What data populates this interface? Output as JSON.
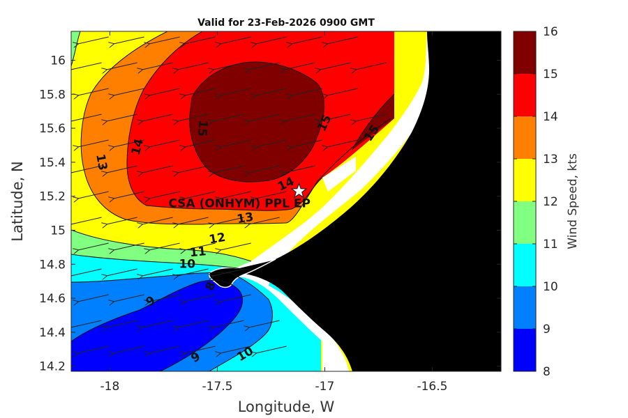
{
  "title": "Valid for 23-Feb-2026 0900 GMT",
  "axes": {
    "xlabel": "Longitude, W",
    "ylabel": "Latitude, N",
    "xlim": [
      -18.18,
      -16.18
    ],
    "ylim": [
      14.17,
      16.17
    ],
    "xticks": [
      {
        "value": -18,
        "label": "-18"
      },
      {
        "value": -17.5,
        "label": "-17.5"
      },
      {
        "value": -17,
        "label": "-17"
      },
      {
        "value": -16.5,
        "label": "-16.5"
      }
    ],
    "yticks": [
      {
        "value": 14.2,
        "label": "14.2"
      },
      {
        "value": 14.4,
        "label": "14.4"
      },
      {
        "value": 14.6,
        "label": "14.6"
      },
      {
        "value": 14.8,
        "label": "14.8"
      },
      {
        "value": 15,
        "label": "15"
      },
      {
        "value": 15.2,
        "label": "15.2"
      },
      {
        "value": 15.4,
        "label": "15.4"
      },
      {
        "value": 15.6,
        "label": "15.6"
      },
      {
        "value": 15.8,
        "label": "15.8"
      },
      {
        "value": 16,
        "label": "16"
      }
    ]
  },
  "colorbar": {
    "label": "Wind Speed, kts",
    "ticks": [
      "8",
      "9",
      "10",
      "11",
      "12",
      "13",
      "14",
      "15",
      "16"
    ],
    "colors": [
      "#0000ff",
      "#0080ff",
      "#00ffff",
      "#80ff80",
      "#ffff00",
      "#ff8000",
      "#ff0000",
      "#800000"
    ],
    "range": [
      8,
      16
    ]
  },
  "contour_labels": [
    {
      "text": "13",
      "lon": -18.04,
      "lat": 15.4,
      "angle": 80
    },
    {
      "text": "14",
      "lon": -17.87,
      "lat": 15.49,
      "angle": -75
    },
    {
      "text": "15",
      "lon": -17.57,
      "lat": 15.6,
      "angle": 95
    },
    {
      "text": "15",
      "lon": -17.0,
      "lat": 15.63,
      "angle": -65
    },
    {
      "text": "15",
      "lon": -16.78,
      "lat": 15.57,
      "angle": -55
    },
    {
      "text": "14",
      "lon": -17.18,
      "lat": 15.27,
      "angle": -25
    },
    {
      "text": "13",
      "lon": -17.37,
      "lat": 15.07,
      "angle": -10
    },
    {
      "text": "12",
      "lon": -17.5,
      "lat": 14.95,
      "angle": -10
    },
    {
      "text": "11",
      "lon": -17.59,
      "lat": 14.87,
      "angle": -5
    },
    {
      "text": "10",
      "lon": -17.64,
      "lat": 14.8,
      "angle": 0
    },
    {
      "text": "8",
      "lon": -17.53,
      "lat": 14.67,
      "angle": -65
    },
    {
      "text": "9",
      "lon": -17.81,
      "lat": 14.58,
      "angle": -30
    },
    {
      "text": "9",
      "lon": -17.6,
      "lat": 14.25,
      "angle": -30
    },
    {
      "text": "10",
      "lon": -17.37,
      "lat": 14.27,
      "angle": -30
    }
  ],
  "site": {
    "name": "CSA (ONHYM) PPL EP",
    "lon": -17.12,
    "lat": 15.23
  },
  "wind_vectors": {
    "direction_deg_from": 75,
    "note": "arrows point WSW over ocean"
  }
}
